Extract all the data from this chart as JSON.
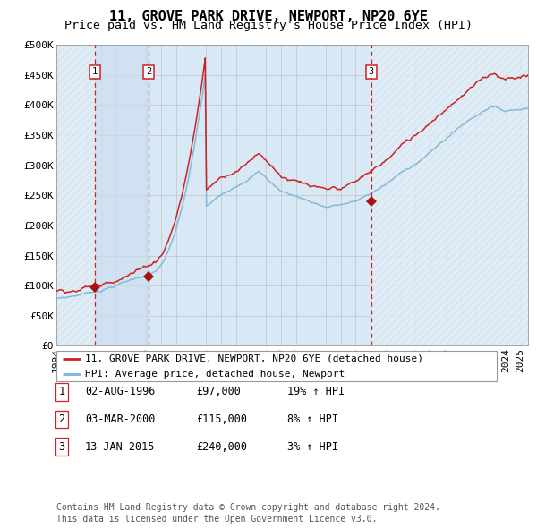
{
  "title": "11, GROVE PARK DRIVE, NEWPORT, NP20 6YE",
  "subtitle": "Price paid vs. HM Land Registry's House Price Index (HPI)",
  "ylim": [
    0,
    500000
  ],
  "yticks": [
    0,
    50000,
    100000,
    150000,
    200000,
    250000,
    300000,
    350000,
    400000,
    450000,
    500000
  ],
  "ytick_labels": [
    "£0",
    "£50K",
    "£100K",
    "£150K",
    "£200K",
    "£250K",
    "£300K",
    "£350K",
    "£400K",
    "£450K",
    "£500K"
  ],
  "xlim_start": 1994.0,
  "xlim_end": 2025.5,
  "hpi_color": "#7ab4d8",
  "price_color": "#cc2222",
  "marker_color": "#aa1111",
  "bg_color": "#d8e8f4",
  "grid_color": "#bbbbbb",
  "sale_dates": [
    1996.58,
    2000.17,
    2015.04
  ],
  "sale_prices": [
    97000,
    115000,
    240000
  ],
  "sale_labels": [
    "1",
    "2",
    "3"
  ],
  "sale_date_str": [
    "02-AUG-1996",
    "03-MAR-2000",
    "13-JAN-2015"
  ],
  "sale_price_str": [
    "£97,000",
    "£115,000",
    "£240,000"
  ],
  "sale_pct_str": [
    "19% ↑ HPI",
    "8% ↑ HPI",
    "3% ↑ HPI"
  ],
  "legend_label_price": "11, GROVE PARK DRIVE, NEWPORT, NP20 6YE (detached house)",
  "legend_label_hpi": "HPI: Average price, detached house, Newport",
  "footnote": "Contains HM Land Registry data © Crown copyright and database right 2024.\nThis data is licensed under the Open Government Licence v3.0.",
  "title_fontsize": 11,
  "subtitle_fontsize": 9.5,
  "tick_fontsize": 8,
  "legend_fontsize": 8,
  "table_fontsize": 8.5,
  "footnote_fontsize": 7
}
